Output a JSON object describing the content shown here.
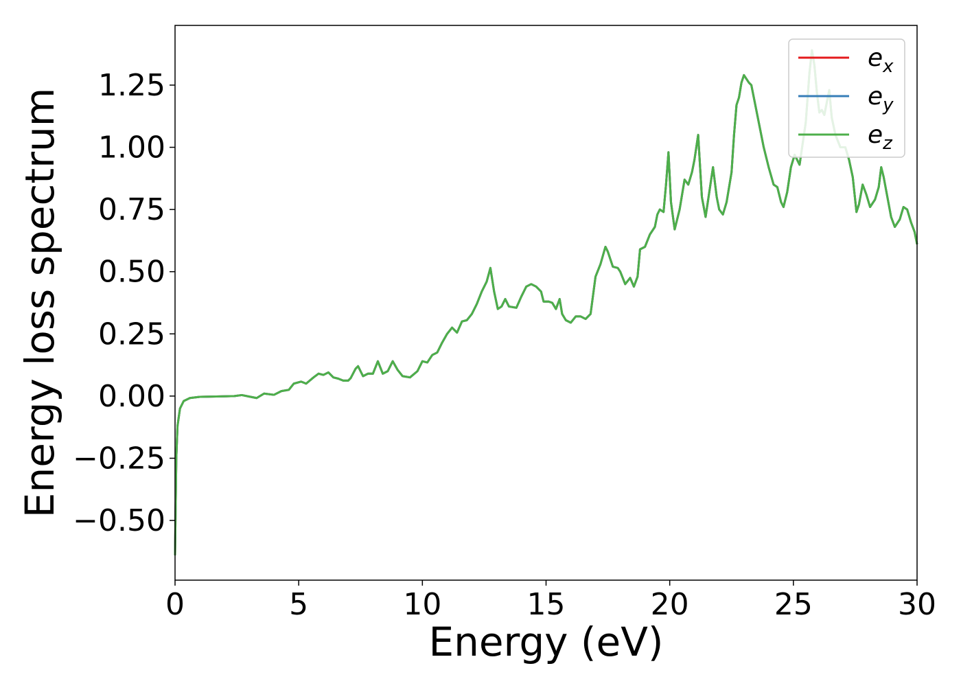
{
  "chart_data": {
    "type": "line",
    "title": "",
    "xlabel": "Energy (eV)",
    "ylabel": "Energy loss spectrum",
    "xlim": [
      0,
      30
    ],
    "ylim": [
      -0.74,
      1.49
    ],
    "xticks": [
      0,
      5,
      10,
      15,
      20,
      25,
      30
    ],
    "xtick_labels": [
      "0",
      "5",
      "10",
      "15",
      "20",
      "25",
      "30"
    ],
    "yticks": [
      -0.5,
      -0.25,
      0,
      0.25,
      0.5,
      0.75,
      1.0,
      1.25
    ],
    "ytick_labels": [
      "−0.50",
      "−0.25",
      "0.00",
      "0.25",
      "0.50",
      "0.75",
      "1.00",
      "1.25"
    ],
    "grid": false,
    "legend": {
      "placement": "top-right"
    },
    "series": [
      {
        "name": "e",
        "sub": "x",
        "color": "#e41a1c",
        "points": [
          [
            0.0,
            -0.64
          ],
          [
            0.05,
            -0.25
          ],
          [
            0.1,
            -0.12
          ],
          [
            0.2,
            -0.05
          ],
          [
            0.35,
            -0.02
          ],
          [
            0.6,
            -0.008
          ],
          [
            1.0,
            -0.003
          ],
          [
            1.5,
            -0.002
          ],
          [
            2.0,
            -0.001
          ],
          [
            2.4,
            0.0
          ],
          [
            2.7,
            0.004
          ],
          [
            3.0,
            -0.002
          ],
          [
            3.3,
            -0.008
          ],
          [
            3.6,
            0.01
          ],
          [
            4.0,
            0.005
          ],
          [
            4.3,
            0.02
          ],
          [
            4.6,
            0.025
          ],
          [
            4.8,
            0.05
          ],
          [
            5.1,
            0.058
          ],
          [
            5.3,
            0.05
          ],
          [
            5.6,
            0.075
          ],
          [
            5.8,
            0.09
          ],
          [
            6.0,
            0.085
          ],
          [
            6.2,
            0.095
          ],
          [
            6.4,
            0.075
          ],
          [
            6.6,
            0.07
          ],
          [
            6.8,
            0.062
          ],
          [
            7.0,
            0.062
          ],
          [
            7.1,
            0.072
          ],
          [
            7.3,
            0.11
          ],
          [
            7.4,
            0.12
          ],
          [
            7.6,
            0.08
          ],
          [
            7.8,
            0.09
          ],
          [
            8.0,
            0.09
          ],
          [
            8.2,
            0.14
          ],
          [
            8.4,
            0.09
          ],
          [
            8.6,
            0.1
          ],
          [
            8.8,
            0.14
          ],
          [
            9.0,
            0.105
          ],
          [
            9.2,
            0.08
          ],
          [
            9.5,
            0.075
          ],
          [
            9.8,
            0.1
          ],
          [
            10.0,
            0.14
          ],
          [
            10.2,
            0.135
          ],
          [
            10.4,
            0.165
          ],
          [
            10.6,
            0.175
          ],
          [
            10.8,
            0.215
          ],
          [
            11.0,
            0.25
          ],
          [
            11.2,
            0.275
          ],
          [
            11.4,
            0.255
          ],
          [
            11.6,
            0.3
          ],
          [
            11.8,
            0.305
          ],
          [
            12.0,
            0.33
          ],
          [
            12.2,
            0.37
          ],
          [
            12.4,
            0.42
          ],
          [
            12.6,
            0.46
          ],
          [
            12.75,
            0.515
          ],
          [
            12.9,
            0.42
          ],
          [
            13.05,
            0.35
          ],
          [
            13.2,
            0.36
          ],
          [
            13.35,
            0.39
          ],
          [
            13.5,
            0.36
          ],
          [
            13.8,
            0.355
          ],
          [
            14.0,
            0.4
          ],
          [
            14.2,
            0.44
          ],
          [
            14.4,
            0.45
          ],
          [
            14.6,
            0.44
          ],
          [
            14.8,
            0.42
          ],
          [
            14.9,
            0.38
          ],
          [
            15.1,
            0.38
          ],
          [
            15.25,
            0.375
          ],
          [
            15.4,
            0.35
          ],
          [
            15.55,
            0.39
          ],
          [
            15.65,
            0.33
          ],
          [
            15.8,
            0.305
          ],
          [
            16.0,
            0.295
          ],
          [
            16.2,
            0.32
          ],
          [
            16.4,
            0.32
          ],
          [
            16.6,
            0.31
          ],
          [
            16.8,
            0.33
          ],
          [
            17.0,
            0.48
          ],
          [
            17.2,
            0.53
          ],
          [
            17.4,
            0.6
          ],
          [
            17.5,
            0.58
          ],
          [
            17.7,
            0.52
          ],
          [
            17.9,
            0.515
          ],
          [
            18.0,
            0.5
          ],
          [
            18.2,
            0.45
          ],
          [
            18.4,
            0.475
          ],
          [
            18.55,
            0.44
          ],
          [
            18.7,
            0.48
          ],
          [
            18.8,
            0.59
          ],
          [
            19.0,
            0.6
          ],
          [
            19.2,
            0.65
          ],
          [
            19.4,
            0.68
          ],
          [
            19.5,
            0.73
          ],
          [
            19.6,
            0.75
          ],
          [
            19.75,
            0.74
          ],
          [
            19.85,
            0.85
          ],
          [
            19.95,
            0.98
          ],
          [
            20.05,
            0.78
          ],
          [
            20.2,
            0.67
          ],
          [
            20.4,
            0.75
          ],
          [
            20.6,
            0.87
          ],
          [
            20.75,
            0.85
          ],
          [
            20.9,
            0.9
          ],
          [
            21.0,
            0.95
          ],
          [
            21.15,
            1.05
          ],
          [
            21.3,
            0.8
          ],
          [
            21.45,
            0.72
          ],
          [
            21.6,
            0.82
          ],
          [
            21.75,
            0.92
          ],
          [
            21.9,
            0.8
          ],
          [
            22.0,
            0.75
          ],
          [
            22.15,
            0.73
          ],
          [
            22.3,
            0.78
          ],
          [
            22.5,
            0.9
          ],
          [
            22.6,
            1.05
          ],
          [
            22.7,
            1.17
          ],
          [
            22.8,
            1.2
          ],
          [
            22.9,
            1.26
          ],
          [
            23.0,
            1.29
          ],
          [
            23.2,
            1.26
          ],
          [
            23.3,
            1.25
          ],
          [
            23.4,
            1.2
          ],
          [
            23.6,
            1.1
          ],
          [
            23.8,
            1.0
          ],
          [
            24.0,
            0.92
          ],
          [
            24.2,
            0.85
          ],
          [
            24.35,
            0.84
          ],
          [
            24.5,
            0.78
          ],
          [
            24.6,
            0.76
          ],
          [
            24.75,
            0.82
          ],
          [
            24.9,
            0.92
          ],
          [
            25.05,
            0.97
          ],
          [
            25.25,
            0.93
          ],
          [
            25.5,
            1.1
          ],
          [
            25.65,
            1.3
          ],
          [
            25.75,
            1.39
          ],
          [
            25.85,
            1.33
          ],
          [
            25.95,
            1.22
          ],
          [
            26.05,
            1.14
          ],
          [
            26.15,
            1.15
          ],
          [
            26.25,
            1.13
          ],
          [
            26.35,
            1.18
          ],
          [
            26.45,
            1.23
          ],
          [
            26.55,
            1.12
          ],
          [
            26.7,
            1.05
          ],
          [
            26.9,
            1.0
          ],
          [
            27.1,
            1.0
          ],
          [
            27.25,
            0.95
          ],
          [
            27.4,
            0.88
          ],
          [
            27.55,
            0.74
          ],
          [
            27.65,
            0.77
          ],
          [
            27.8,
            0.85
          ],
          [
            27.95,
            0.81
          ],
          [
            28.1,
            0.76
          ],
          [
            28.3,
            0.79
          ],
          [
            28.45,
            0.84
          ],
          [
            28.55,
            0.92
          ],
          [
            28.65,
            0.88
          ],
          [
            28.8,
            0.8
          ],
          [
            28.95,
            0.72
          ],
          [
            29.1,
            0.68
          ],
          [
            29.3,
            0.71
          ],
          [
            29.45,
            0.76
          ],
          [
            29.6,
            0.75
          ],
          [
            29.75,
            0.7
          ],
          [
            29.9,
            0.66
          ],
          [
            30.0,
            0.61
          ]
        ]
      },
      {
        "name": "e",
        "sub": "y",
        "color": "#377eb8",
        "points": "same-as-ex"
      },
      {
        "name": "e",
        "sub": "z",
        "color": "#4daf4a",
        "points": "same-as-ex"
      }
    ]
  }
}
